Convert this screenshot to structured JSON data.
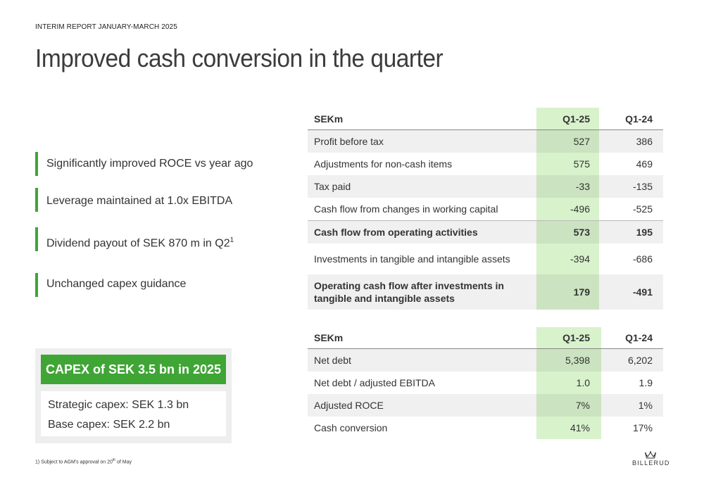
{
  "header": {
    "report_label": "INTERIM REPORT JANUARY-MARCH 2025",
    "title": "Improved cash conversion in the quarter"
  },
  "bullets": [
    {
      "text": "Significantly improved ROCE vs year ago",
      "sup": ""
    },
    {
      "text": "Leverage maintained at 1.0x EBITDA",
      "sup": ""
    },
    {
      "text": "Dividend payout of SEK 870 m in Q2",
      "sup": "1"
    },
    {
      "text": "Unchanged capex guidance",
      "sup": ""
    }
  ],
  "capex": {
    "header": "CAPEX of SEK 3.5 bn in 2025",
    "lines": [
      "Strategic capex: SEK 1.3 bn",
      "Base capex: SEK 2.2 bn"
    ]
  },
  "cashflow_table": {
    "headers": [
      "SEKm",
      "Q1-25",
      "Q1-24"
    ],
    "rows": [
      {
        "label": "Profit before tax",
        "q1_25": "527",
        "q1_24": "386",
        "bold": false
      },
      {
        "label": "Adjustments for non-cash items",
        "q1_25": "575",
        "q1_24": "469",
        "bold": false
      },
      {
        "label": "Tax paid",
        "q1_25": "-33",
        "q1_24": "-135",
        "bold": false
      },
      {
        "label": "Cash flow from changes in working capital",
        "q1_25": "-496",
        "q1_24": "-525",
        "bold": false
      },
      {
        "label": "Cash flow from operating activities",
        "q1_25": "573",
        "q1_24": "195",
        "bold": true
      },
      {
        "label": "Investments in tangible and intangible assets",
        "q1_25": "-394",
        "q1_24": "-686",
        "bold": false
      },
      {
        "label": "Operating cash flow after investments in tangible and intangible assets",
        "q1_25": "179",
        "q1_24": "-491",
        "bold": true
      }
    ]
  },
  "debt_table": {
    "headers": [
      "SEKm",
      "Q1-25",
      "Q1-24"
    ],
    "rows": [
      {
        "label": "Net debt",
        "q1_25": "5,398",
        "q1_24": "6,202"
      },
      {
        "label": "Net debt / adjusted EBITDA",
        "q1_25": "1.0",
        "q1_24": "1.9"
      },
      {
        "label": "Adjusted ROCE",
        "q1_25": "7%",
        "q1_24": "1%"
      },
      {
        "label": "Cash conversion",
        "q1_25": "41%",
        "q1_24": "17%"
      }
    ]
  },
  "footnote": {
    "prefix": "1) Subject to AGM's approval on 20",
    "sup": "th",
    "suffix": " of May"
  },
  "logo": {
    "text": "BILLERUD",
    "icon": "crown-icon"
  },
  "colors": {
    "accent": "#3fa535",
    "highlight": "#d8f2cc"
  }
}
